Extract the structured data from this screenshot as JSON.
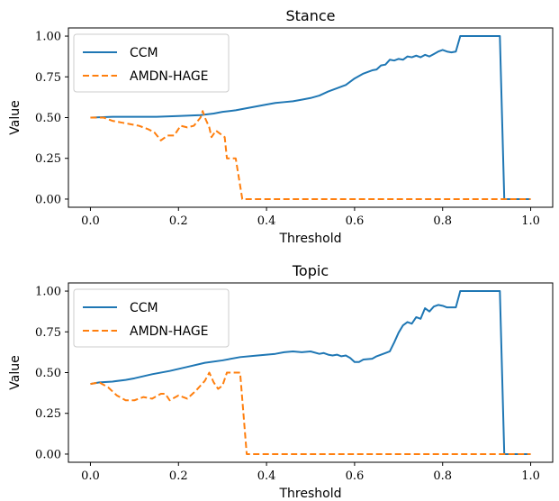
{
  "chart_data": [
    {
      "type": "line",
      "title": "Stance",
      "xlabel": "Threshold",
      "ylabel": "Value",
      "xlim": [
        -0.05,
        1.05
      ],
      "ylim": [
        -0.05,
        1.05
      ],
      "xticks": [
        "0.0",
        "0.2",
        "0.4",
        "0.6",
        "0.8",
        "1.0"
      ],
      "yticks": [
        "0.00",
        "0.25",
        "0.50",
        "0.75",
        "1.00"
      ],
      "legend": "top-left",
      "series": [
        {
          "name": "CCM",
          "color": "#1f77b4",
          "style": "solid",
          "points": [
            [
              0,
              0.5
            ],
            [
              0.05,
              0.505
            ],
            [
              0.1,
              0.505
            ],
            [
              0.15,
              0.505
            ],
            [
              0.2,
              0.51
            ],
            [
              0.25,
              0.515
            ],
            [
              0.28,
              0.525
            ],
            [
              0.3,
              0.535
            ],
            [
              0.33,
              0.545
            ],
            [
              0.36,
              0.56
            ],
            [
              0.4,
              0.58
            ],
            [
              0.42,
              0.59
            ],
            [
              0.44,
              0.595
            ],
            [
              0.46,
              0.6
            ],
            [
              0.48,
              0.61
            ],
            [
              0.5,
              0.62
            ],
            [
              0.52,
              0.635
            ],
            [
              0.54,
              0.66
            ],
            [
              0.56,
              0.68
            ],
            [
              0.58,
              0.7
            ],
            [
              0.6,
              0.74
            ],
            [
              0.62,
              0.77
            ],
            [
              0.64,
              0.79
            ],
            [
              0.65,
              0.795
            ],
            [
              0.66,
              0.82
            ],
            [
              0.67,
              0.825
            ],
            [
              0.68,
              0.855
            ],
            [
              0.69,
              0.85
            ],
            [
              0.7,
              0.86
            ],
            [
              0.71,
              0.855
            ],
            [
              0.72,
              0.875
            ],
            [
              0.73,
              0.87
            ],
            [
              0.74,
              0.88
            ],
            [
              0.75,
              0.87
            ],
            [
              0.76,
              0.885
            ],
            [
              0.77,
              0.875
            ],
            [
              0.78,
              0.89
            ],
            [
              0.79,
              0.905
            ],
            [
              0.8,
              0.915
            ],
            [
              0.81,
              0.905
            ],
            [
              0.82,
              0.9
            ],
            [
              0.83,
              0.905
            ],
            [
              0.84,
              1.0
            ],
            [
              0.93,
              1.0
            ],
            [
              0.94,
              0.0
            ],
            [
              1.0,
              0.0
            ]
          ]
        },
        {
          "name": "AMDN-HAGE",
          "color": "#ff7f0e",
          "style": "dashed",
          "points": [
            [
              0,
              0.5
            ],
            [
              0.03,
              0.5
            ],
            [
              0.05,
              0.48
            ],
            [
              0.07,
              0.47
            ],
            [
              0.09,
              0.46
            ],
            [
              0.11,
              0.45
            ],
            [
              0.13,
              0.43
            ],
            [
              0.145,
              0.41
            ],
            [
              0.16,
              0.36
            ],
            [
              0.175,
              0.39
            ],
            [
              0.19,
              0.39
            ],
            [
              0.205,
              0.45
            ],
            [
              0.22,
              0.44
            ],
            [
              0.235,
              0.45
            ],
            [
              0.25,
              0.5
            ],
            [
              0.255,
              0.54
            ],
            [
              0.26,
              0.5
            ],
            [
              0.27,
              0.44
            ],
            [
              0.275,
              0.38
            ],
            [
              0.285,
              0.42
            ],
            [
              0.295,
              0.4
            ],
            [
              0.305,
              0.38
            ],
            [
              0.31,
              0.25
            ],
            [
              0.33,
              0.25
            ],
            [
              0.345,
              0.0
            ],
            [
              1.0,
              0.0
            ]
          ]
        }
      ]
    },
    {
      "type": "line",
      "title": "Topic",
      "xlabel": "Threshold",
      "ylabel": "Value",
      "xlim": [
        -0.05,
        1.05
      ],
      "ylim": [
        -0.05,
        1.05
      ],
      "xticks": [
        "0.0",
        "0.2",
        "0.4",
        "0.6",
        "0.8",
        "1.0"
      ],
      "yticks": [
        "0.00",
        "0.25",
        "0.50",
        "0.75",
        "1.00"
      ],
      "legend": "top-left",
      "series": [
        {
          "name": "CCM",
          "color": "#1f77b4",
          "style": "solid",
          "points": [
            [
              0,
              0.43
            ],
            [
              0.02,
              0.44
            ],
            [
              0.05,
              0.445
            ],
            [
              0.08,
              0.455
            ],
            [
              0.1,
              0.465
            ],
            [
              0.14,
              0.49
            ],
            [
              0.18,
              0.51
            ],
            [
              0.22,
              0.535
            ],
            [
              0.26,
              0.56
            ],
            [
              0.3,
              0.575
            ],
            [
              0.34,
              0.595
            ],
            [
              0.38,
              0.605
            ],
            [
              0.42,
              0.615
            ],
            [
              0.44,
              0.625
            ],
            [
              0.46,
              0.63
            ],
            [
              0.48,
              0.625
            ],
            [
              0.5,
              0.63
            ],
            [
              0.52,
              0.615
            ],
            [
              0.53,
              0.62
            ],
            [
              0.54,
              0.61
            ],
            [
              0.55,
              0.605
            ],
            [
              0.56,
              0.61
            ],
            [
              0.57,
              0.6
            ],
            [
              0.58,
              0.605
            ],
            [
              0.59,
              0.59
            ],
            [
              0.6,
              0.565
            ],
            [
              0.61,
              0.565
            ],
            [
              0.62,
              0.58
            ],
            [
              0.64,
              0.585
            ],
            [
              0.65,
              0.6
            ],
            [
              0.67,
              0.62
            ],
            [
              0.68,
              0.63
            ],
            [
              0.69,
              0.685
            ],
            [
              0.7,
              0.745
            ],
            [
              0.71,
              0.79
            ],
            [
              0.72,
              0.81
            ],
            [
              0.73,
              0.8
            ],
            [
              0.74,
              0.84
            ],
            [
              0.75,
              0.83
            ],
            [
              0.76,
              0.895
            ],
            [
              0.77,
              0.875
            ],
            [
              0.78,
              0.905
            ],
            [
              0.79,
              0.915
            ],
            [
              0.8,
              0.91
            ],
            [
              0.81,
              0.9
            ],
            [
              0.83,
              0.9
            ],
            [
              0.84,
              1.0
            ],
            [
              0.93,
              1.0
            ],
            [
              0.94,
              0.0
            ],
            [
              1.0,
              0.0
            ]
          ]
        },
        {
          "name": "AMDN-HAGE",
          "color": "#ff7f0e",
          "style": "dashed",
          "points": [
            [
              0,
              0.43
            ],
            [
              0.02,
              0.44
            ],
            [
              0.04,
              0.41
            ],
            [
              0.06,
              0.36
            ],
            [
              0.08,
              0.33
            ],
            [
              0.1,
              0.33
            ],
            [
              0.12,
              0.35
            ],
            [
              0.14,
              0.34
            ],
            [
              0.16,
              0.37
            ],
            [
              0.17,
              0.37
            ],
            [
              0.18,
              0.33
            ],
            [
              0.2,
              0.36
            ],
            [
              0.22,
              0.34
            ],
            [
              0.24,
              0.39
            ],
            [
              0.26,
              0.45
            ],
            [
              0.27,
              0.5
            ],
            [
              0.28,
              0.44
            ],
            [
              0.29,
              0.4
            ],
            [
              0.3,
              0.42
            ],
            [
              0.31,
              0.5
            ],
            [
              0.34,
              0.5
            ],
            [
              0.355,
              0.0
            ],
            [
              1.0,
              0.0
            ]
          ]
        }
      ]
    }
  ]
}
